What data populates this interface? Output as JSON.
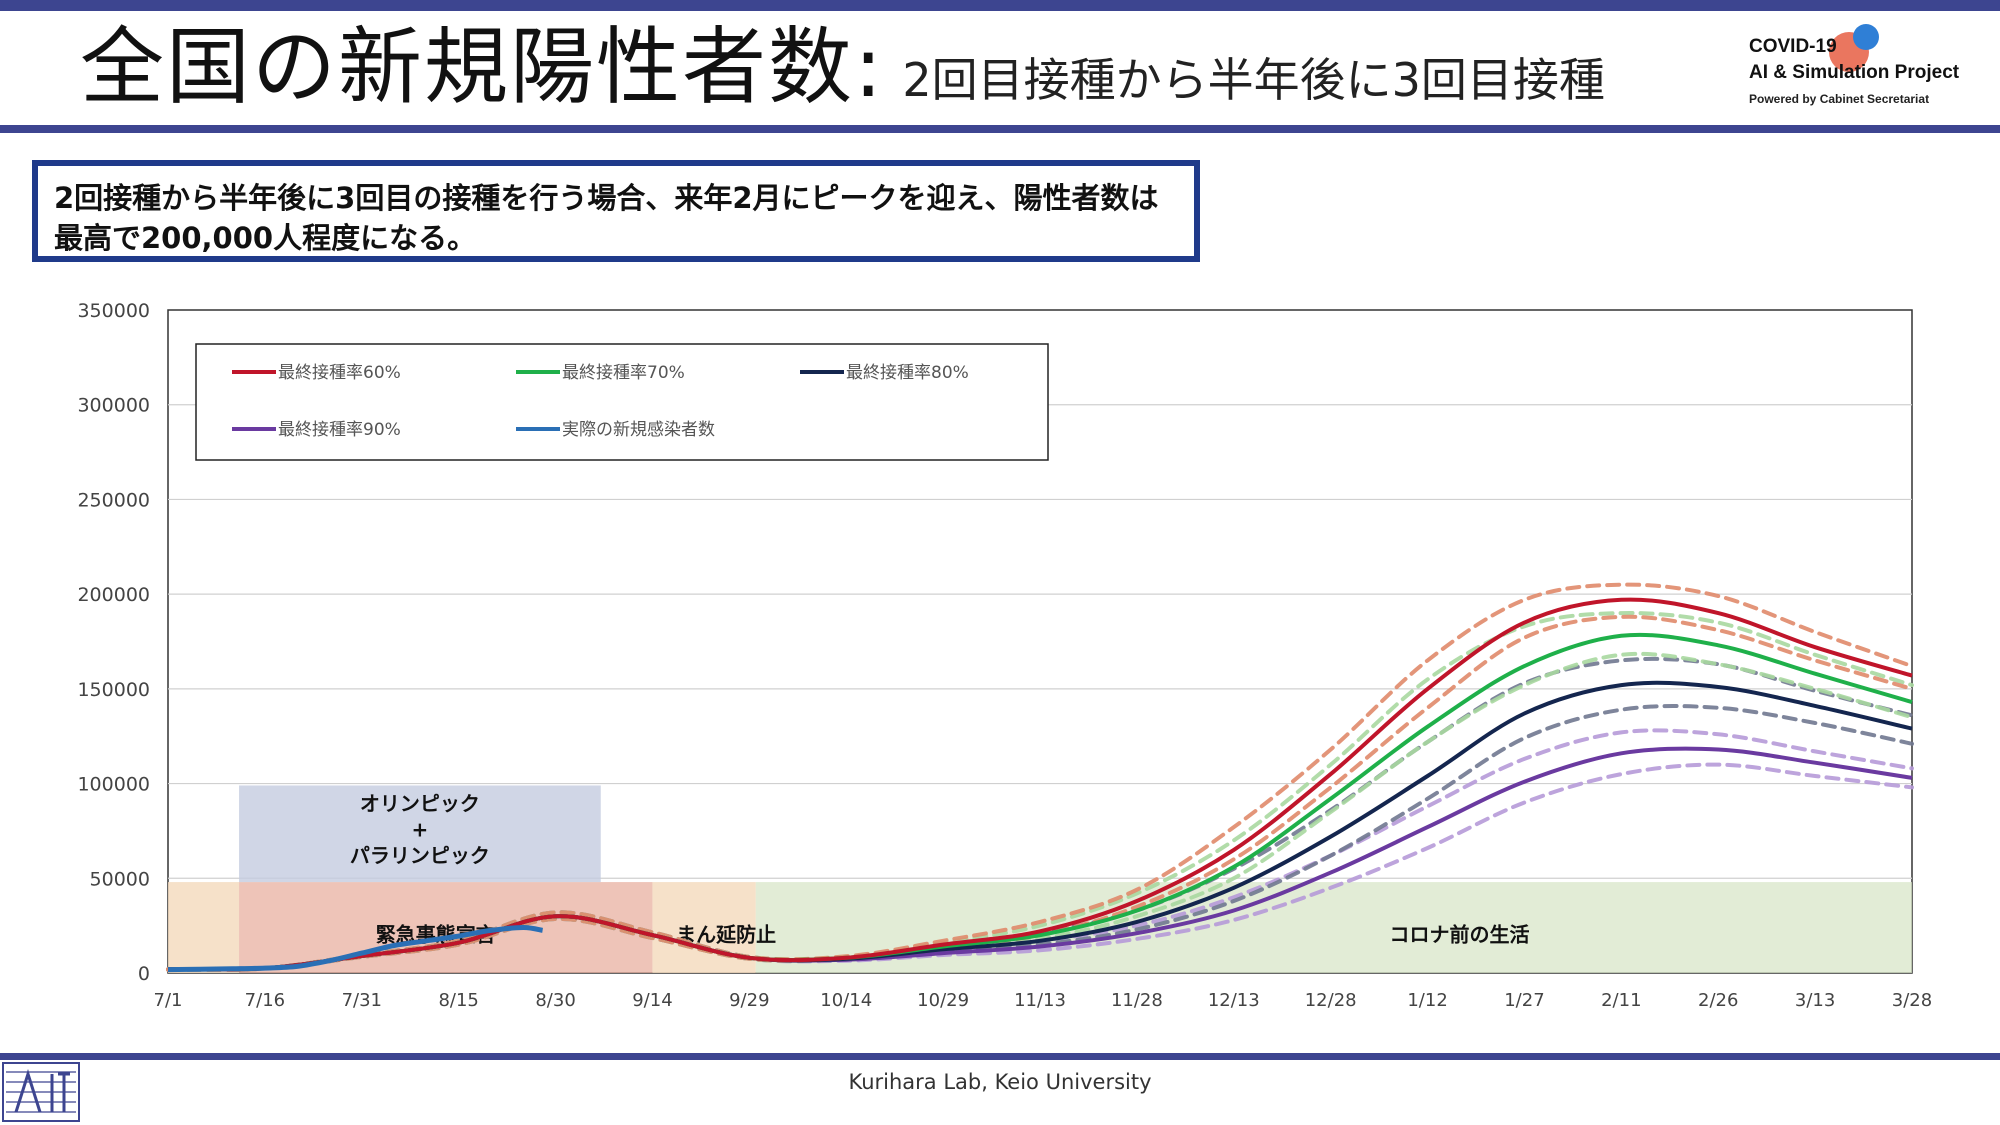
{
  "page": {
    "title_main": "全国の新規陽性者数:",
    "title_sub": "2回目接種から半年後に3回目接種",
    "logo": {
      "line1": "COVID-19",
      "line2": "AI & Simulation Project",
      "line3": "Powered by Cabinet Secretariat"
    },
    "callout": "2回接種から半年後に3回目の接種を行う場合、来年2月にピークを迎え、陽性者数は最高で200,000人程度になる。",
    "footer": "Kurihara Lab, Keio University"
  },
  "colors": {
    "rate60": "#c0152a",
    "rate60_band": "#e08a6a",
    "rate70": "#1fb04a",
    "rate70_band": "#a8d8a0",
    "rate80": "#14264f",
    "rate80_band": "#707890",
    "rate90": "#6a3aa0",
    "rate90_band": "#b69ad8",
    "actual": "#2a6fb5"
  },
  "chart_data": {
    "type": "line",
    "x": [
      "7/1",
      "7/16",
      "7/31",
      "8/15",
      "8/30",
      "9/14",
      "9/29",
      "10/14",
      "10/29",
      "11/13",
      "11/28",
      "12/13",
      "12/28",
      "1/12",
      "1/27",
      "2/11",
      "2/26",
      "3/13",
      "3/28"
    ],
    "ylim": [
      0,
      350000
    ],
    "yticks": [
      "350000",
      "300000",
      "250000",
      "200000",
      "150000",
      "100000",
      "50000",
      "0"
    ],
    "grid": "horizontal",
    "legend_position": "top-left",
    "series": [
      {
        "name": "最終接種率60%",
        "key": "rate60",
        "values": [
          2000,
          2500,
          9000,
          16000,
          30000,
          20000,
          8000,
          8000,
          15000,
          22000,
          38000,
          65000,
          105000,
          150000,
          185000,
          197000,
          190000,
          172000,
          157000
        ],
        "band_upper": [
          2000,
          2500,
          9500,
          17000,
          32000,
          21500,
          8500,
          8800,
          17000,
          27000,
          44000,
          77000,
          118000,
          165000,
          197000,
          205000,
          199000,
          180000,
          162000
        ],
        "band_lower": [
          1800,
          2300,
          8500,
          15000,
          28500,
          18500,
          7500,
          7500,
          14000,
          20000,
          35000,
          60000,
          98000,
          140000,
          177000,
          188000,
          181000,
          165000,
          150000
        ]
      },
      {
        "name": "最終接種率70%",
        "key": "rate70",
        "values": [
          2000,
          2500,
          9000,
          16000,
          30000,
          20000,
          8000,
          8000,
          14000,
          20000,
          33000,
          56000,
          92000,
          130000,
          162000,
          178000,
          173000,
          158000,
          143000
        ],
        "band_upper": [
          2000,
          2500,
          9500,
          17000,
          32000,
          21500,
          8500,
          8500,
          16000,
          25000,
          42000,
          70000,
          110000,
          155000,
          183000,
          190000,
          185000,
          168000,
          152000
        ],
        "band_lower": [
          1800,
          2300,
          8500,
          15000,
          28500,
          18500,
          7500,
          7200,
          13000,
          18000,
          30000,
          50000,
          85000,
          122000,
          152000,
          168000,
          163000,
          150000,
          135000
        ]
      },
      {
        "name": "最終接種率80%",
        "key": "rate80",
        "values": [
          2000,
          2500,
          9000,
          16000,
          30000,
          20000,
          8000,
          7500,
          12500,
          17000,
          27000,
          45000,
          72000,
          104000,
          137000,
          152000,
          151000,
          141000,
          129000
        ],
        "band_upper": [
          2000,
          2500,
          9500,
          17000,
          32000,
          21500,
          8500,
          8200,
          14500,
          21000,
          33000,
          55000,
          86000,
          122000,
          153000,
          165000,
          163000,
          149000,
          136000
        ],
        "band_lower": [
          1800,
          2300,
          8500,
          15000,
          28500,
          18500,
          7500,
          7000,
          11000,
          15000,
          23000,
          38000,
          62000,
          92000,
          124000,
          139000,
          140000,
          132000,
          121000
        ]
      },
      {
        "name": "最終接種率90%",
        "key": "rate90",
        "values": [
          2000,
          2500,
          9000,
          16000,
          30000,
          20000,
          8000,
          7000,
          10500,
          14000,
          21000,
          33000,
          53000,
          77000,
          101000,
          116000,
          118000,
          111000,
          103000
        ],
        "band_upper": [
          2000,
          2500,
          9500,
          17000,
          32000,
          21500,
          8500,
          7500,
          12000,
          17000,
          25000,
          40000,
          62000,
          88000,
          113000,
          127000,
          126000,
          117000,
          108000
        ],
        "band_lower": [
          1800,
          2300,
          8500,
          15000,
          28500,
          18500,
          7500,
          6500,
          9500,
          12000,
          18000,
          28000,
          45000,
          66000,
          90000,
          105000,
          110000,
          104000,
          98000
        ]
      },
      {
        "name": "実際の新規感染者数",
        "key": "actual",
        "x": [
          "7/1",
          "7/6",
          "7/11",
          "7/16",
          "7/21",
          "7/26",
          "7/31",
          "8/5",
          "8/10",
          "8/15",
          "8/20",
          "8/25",
          "8/28"
        ],
        "values": [
          1800,
          2000,
          2200,
          2600,
          3500,
          6500,
          10500,
          14500,
          17000,
          19500,
          22500,
          24000,
          22500
        ]
      }
    ],
    "regions": [
      {
        "label": "緊急事態宣言",
        "x_from": "7/12",
        "x_to": "9/30",
        "y_to": 48000,
        "color": "#e8b0a0"
      },
      {
        "label": "まん延防止",
        "x_from": "9/14",
        "x_to": "9/30",
        "y_to": 48000,
        "color": "#f5dcc0"
      },
      {
        "label": "コロナ前の生活",
        "x_from": "9/30",
        "x_to": "3/31",
        "y_to": 48000,
        "color": "#d8e6c8"
      }
    ],
    "olympics_box": {
      "line1": "オリンピック",
      "line2": "+",
      "line3": "パラリンピック"
    }
  }
}
